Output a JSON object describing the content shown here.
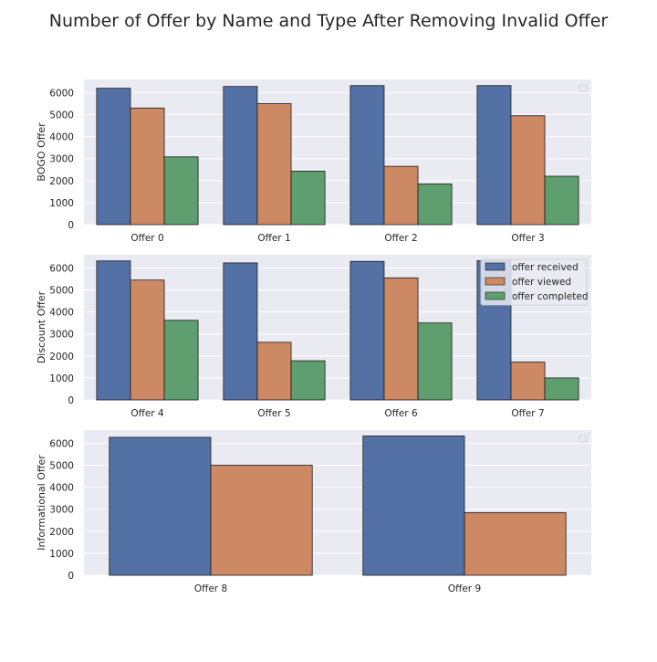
{
  "figure": {
    "title": "Number of Offer by Name and Type After Removing Invalid Offer"
  },
  "colors": {
    "offer received": "#5471a5",
    "offer viewed": "#cc8963",
    "offer completed": "#5f9e6e",
    "plot_background": "#eaeaf2",
    "grid": "#ffffff"
  },
  "legend": {
    "entries": [
      "offer received",
      "offer viewed",
      "offer completed"
    ],
    "placement": "upper-right of second panel"
  },
  "chart_data": [
    {
      "type": "bar",
      "ylabel": "BOGO Offer",
      "categories": [
        "Offer 0",
        "Offer 1",
        "Offer 2",
        "Offer 3"
      ],
      "ylim": [
        0,
        6600
      ],
      "yticks": [
        0,
        1000,
        2000,
        3000,
        4000,
        5000,
        6000
      ],
      "grid": true,
      "series": [
        {
          "name": "offer received",
          "values": [
            6200,
            6280,
            6320,
            6320
          ]
        },
        {
          "name": "offer viewed",
          "values": [
            5300,
            5500,
            2650,
            4950
          ]
        },
        {
          "name": "offer completed",
          "values": [
            3080,
            2430,
            1850,
            2200
          ]
        }
      ]
    },
    {
      "type": "bar",
      "ylabel": "Discount Offer",
      "categories": [
        "Offer 4",
        "Offer 5",
        "Offer 6",
        "Offer 7"
      ],
      "ylim": [
        0,
        6600
      ],
      "yticks": [
        0,
        1000,
        2000,
        3000,
        4000,
        5000,
        6000
      ],
      "grid": true,
      "series": [
        {
          "name": "offer received",
          "values": [
            6320,
            6230,
            6300,
            6330
          ]
        },
        {
          "name": "offer viewed",
          "values": [
            5450,
            2620,
            5550,
            1720
          ]
        },
        {
          "name": "offer completed",
          "values": [
            3620,
            1780,
            3500,
            1000
          ]
        }
      ]
    },
    {
      "type": "bar",
      "ylabel": "Informational Offer",
      "categories": [
        "Offer 8",
        "Offer 9"
      ],
      "ylim": [
        0,
        6600
      ],
      "yticks": [
        0,
        1000,
        2000,
        3000,
        4000,
        5000,
        6000
      ],
      "grid": true,
      "series": [
        {
          "name": "offer received",
          "values": [
            6270,
            6330
          ]
        },
        {
          "name": "offer viewed",
          "values": [
            5000,
            2850
          ]
        }
      ]
    }
  ]
}
